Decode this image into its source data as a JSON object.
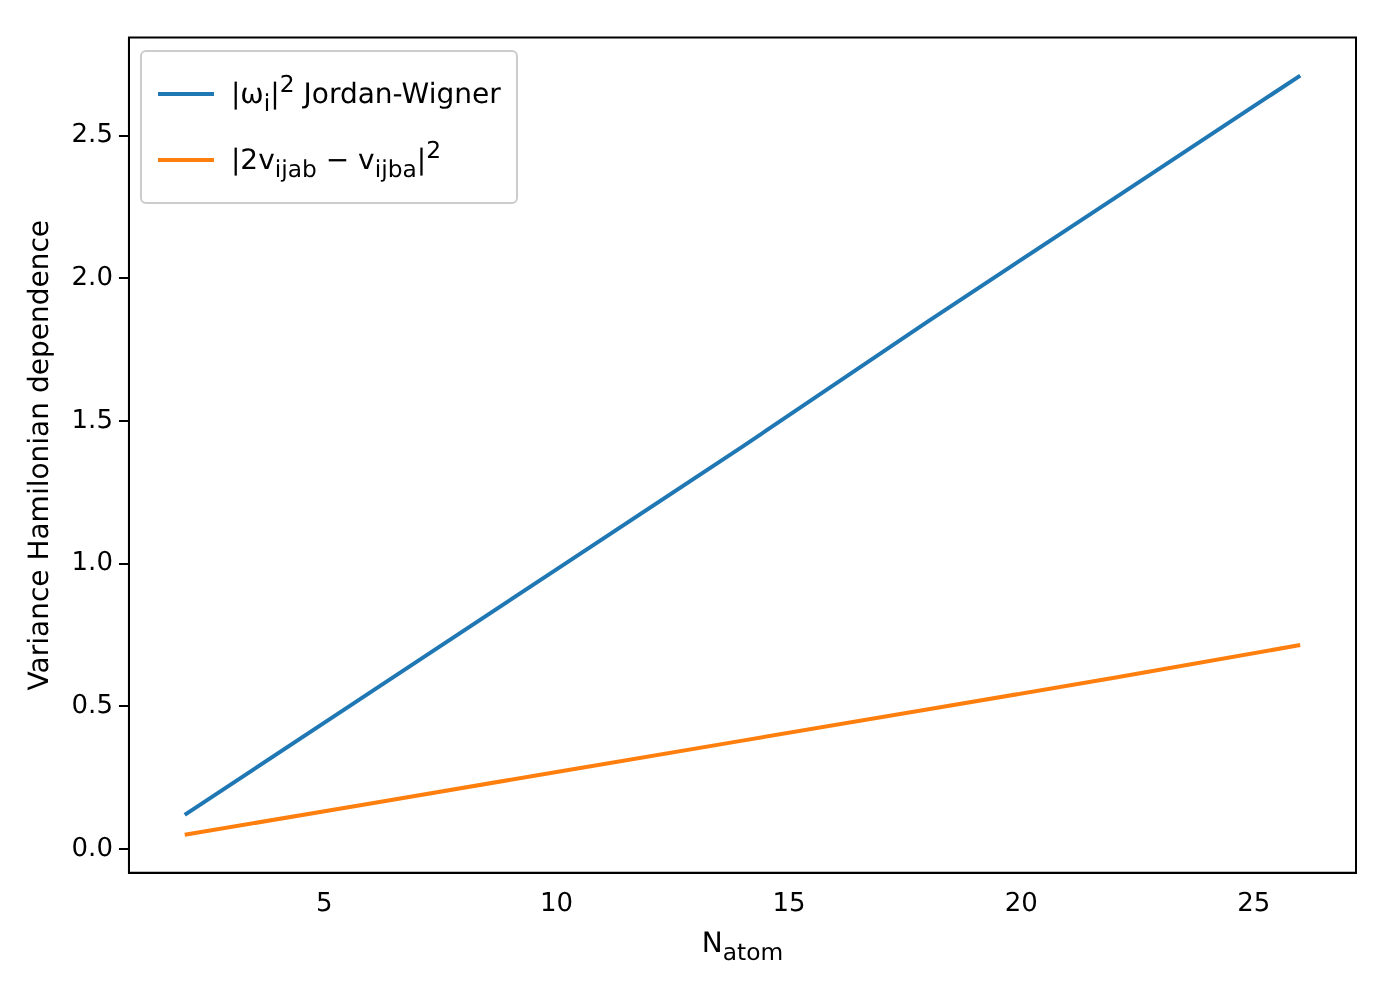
{
  "chart_data": {
    "type": "line",
    "xlabel": "N$_{atom}$",
    "ylabel": "Variance Hamilonian dependence",
    "x": [
      2,
      6,
      10,
      14,
      18,
      22,
      26
    ],
    "series": [
      {
        "name": "|ω$_{i}$|$^{2}$ Jordan-Wigner",
        "color": "#1f77b4",
        "values": [
          0.12,
          0.55,
          0.98,
          1.41,
          1.85,
          2.28,
          2.71
        ]
      },
      {
        "name": "|2v$_{ijab}$ − v$_{ijba}$|$^{2}$",
        "color": "#ff7f0e",
        "values": [
          0.05,
          0.16,
          0.27,
          0.38,
          0.49,
          0.6,
          0.715
        ]
      }
    ],
    "xlim": [
      0.8,
      27.2
    ],
    "ylim": [
      -0.083,
      2.843
    ],
    "xticks": [
      5,
      10,
      15,
      20,
      25
    ],
    "yticks": [
      {
        "value": 0,
        "label": "0.0"
      },
      0.5,
      {
        "value": 1,
        "label": "1.0"
      },
      1.5,
      {
        "value": 2,
        "label": "2.0"
      },
      2.5
    ],
    "legend": "top left",
    "marker": "none",
    "line_style": "solid"
  }
}
